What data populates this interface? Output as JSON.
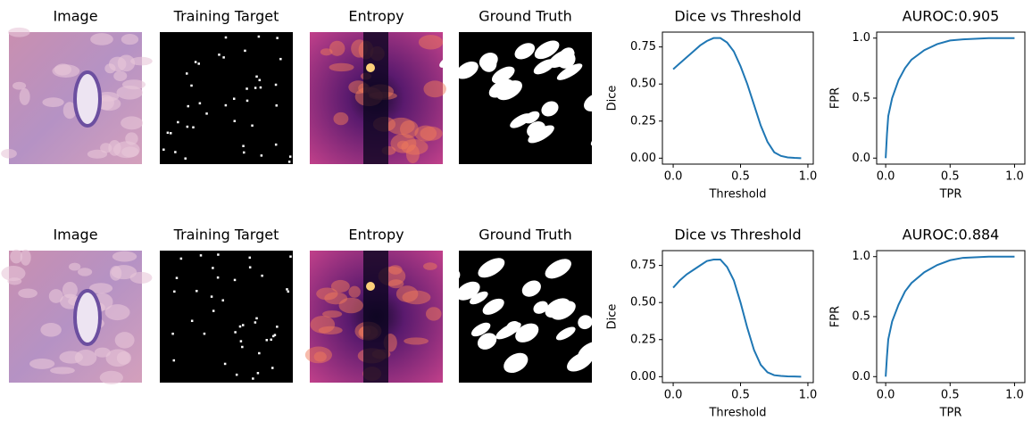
{
  "chart_data": [
    {
      "type": "image",
      "title": "Image"
    },
    {
      "type": "image",
      "title": "Training Target"
    },
    {
      "type": "image",
      "title": "Entropy"
    },
    {
      "type": "image",
      "title": "Ground Truth"
    },
    {
      "type": "line",
      "title": "Dice vs Threshold",
      "xlabel": "Threshold",
      "ylabel": "Dice",
      "color": "#1f77b4",
      "x": [
        0,
        0.05,
        0.1,
        0.15,
        0.2,
        0.25,
        0.3,
        0.35,
        0.4,
        0.45,
        0.5,
        0.55,
        0.6,
        0.65,
        0.7,
        0.75,
        0.8,
        0.85,
        0.9,
        0.95
      ],
      "values": [
        0.6,
        0.64,
        0.68,
        0.72,
        0.76,
        0.79,
        0.81,
        0.81,
        0.78,
        0.72,
        0.62,
        0.5,
        0.36,
        0.22,
        0.11,
        0.04,
        0.015,
        0.005,
        0.002,
        0
      ],
      "xlim": [
        -0.08,
        1.04
      ],
      "ylim": [
        -0.04,
        0.85
      ],
      "xticks": [
        {
          "value": 0,
          "label": "0.0"
        },
        {
          "value": 0.5,
          "label": "0.5"
        },
        {
          "value": 1,
          "label": "1.0"
        }
      ],
      "yticks": [
        {
          "value": 0,
          "label": "0.00"
        },
        {
          "value": 0.25,
          "label": "0.25"
        },
        {
          "value": 0.5,
          "label": "0.50"
        },
        {
          "value": 0.75,
          "label": "0.75"
        }
      ]
    },
    {
      "type": "line",
      "title": "AUROC:0.905",
      "xlabel": "TPR",
      "ylabel": "FPR",
      "color": "#1f77b4",
      "x": [
        0,
        0.01,
        0.02,
        0.05,
        0.1,
        0.15,
        0.2,
        0.3,
        0.4,
        0.5,
        0.6,
        0.8,
        1
      ],
      "values": [
        0,
        0.2,
        0.35,
        0.5,
        0.65,
        0.75,
        0.82,
        0.9,
        0.95,
        0.98,
        0.99,
        1,
        1
      ],
      "xlim": [
        -0.07,
        1.08
      ],
      "ylim": [
        -0.05,
        1.05
      ],
      "xticks": [
        {
          "value": 0,
          "label": "0.0"
        },
        {
          "value": 0.5,
          "label": "0.5"
        },
        {
          "value": 1,
          "label": "1.0"
        }
      ],
      "yticks": [
        {
          "value": 0,
          "label": "0.0"
        },
        {
          "value": 0.5,
          "label": "0.5"
        },
        {
          "value": 1,
          "label": "1.0"
        }
      ]
    },
    {
      "type": "image",
      "title": "Image"
    },
    {
      "type": "image",
      "title": "Training Target"
    },
    {
      "type": "image",
      "title": "Entropy"
    },
    {
      "type": "image",
      "title": "Ground Truth"
    },
    {
      "type": "line",
      "title": "Dice vs Threshold",
      "xlabel": "Threshold",
      "ylabel": "Dice",
      "color": "#1f77b4",
      "x": [
        0,
        0.05,
        0.1,
        0.15,
        0.2,
        0.25,
        0.3,
        0.35,
        0.4,
        0.45,
        0.5,
        0.55,
        0.6,
        0.65,
        0.7,
        0.75,
        0.8,
        0.85,
        0.9,
        0.95
      ],
      "values": [
        0.6,
        0.65,
        0.69,
        0.72,
        0.75,
        0.78,
        0.79,
        0.79,
        0.74,
        0.65,
        0.5,
        0.33,
        0.18,
        0.08,
        0.03,
        0.01,
        0.005,
        0.002,
        0.001,
        0
      ],
      "xlim": [
        -0.08,
        1.04
      ],
      "ylim": [
        -0.04,
        0.85
      ],
      "xticks": [
        {
          "value": 0,
          "label": "0.0"
        },
        {
          "value": 0.5,
          "label": "0.5"
        },
        {
          "value": 1,
          "label": "1.0"
        }
      ],
      "yticks": [
        {
          "value": 0,
          "label": "0.00"
        },
        {
          "value": 0.25,
          "label": "0.25"
        },
        {
          "value": 0.5,
          "label": "0.50"
        },
        {
          "value": 0.75,
          "label": "0.75"
        }
      ]
    },
    {
      "type": "line",
      "title": "AUROC:0.884",
      "xlabel": "TPR",
      "ylabel": "FPR",
      "color": "#1f77b4",
      "x": [
        0,
        0.01,
        0.02,
        0.05,
        0.1,
        0.15,
        0.2,
        0.3,
        0.4,
        0.5,
        0.6,
        0.8,
        1
      ],
      "values": [
        0,
        0.17,
        0.31,
        0.46,
        0.6,
        0.71,
        0.78,
        0.87,
        0.93,
        0.97,
        0.99,
        1,
        1
      ],
      "xlim": [
        -0.07,
        1.08
      ],
      "ylim": [
        -0.05,
        1.05
      ],
      "xticks": [
        {
          "value": 0,
          "label": "0.0"
        },
        {
          "value": 0.5,
          "label": "0.5"
        },
        {
          "value": 1,
          "label": "1.0"
        }
      ],
      "yticks": [
        {
          "value": 0,
          "label": "0.0"
        },
        {
          "value": 0.5,
          "label": "0.5"
        },
        {
          "value": 1,
          "label": "1.0"
        }
      ]
    }
  ]
}
